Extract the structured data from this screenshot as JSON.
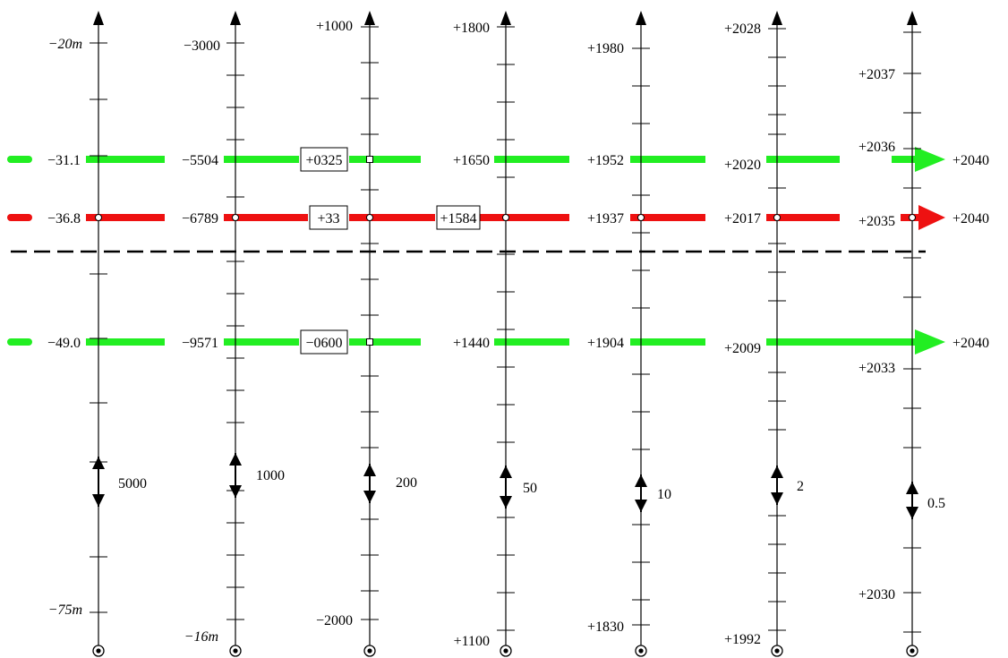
{
  "colors": {
    "green": "#22ee22",
    "red": "#ee1111",
    "axis": "#000000",
    "dash": "#000000"
  },
  "axes": [
    {
      "id": "a1",
      "top_label": "−20m",
      "bottom_label": "−75m",
      "top_label_italic": true,
      "step_label": "5000",
      "green_upper": "−31.1",
      "red": "−36.8",
      "green_lower": "−49.0"
    },
    {
      "id": "a2",
      "top_label": "−3000",
      "bottom_label": "−16m",
      "bottom_label_italic": true,
      "step_label": "1000",
      "green_upper": "−5504",
      "red": "−6789",
      "green_lower": "−9571"
    },
    {
      "id": "a3",
      "top_label": "+1000",
      "bottom_label": "−2000",
      "step_label": "200",
      "green_upper": "+0325",
      "red": "+33",
      "green_lower": "−0600"
    },
    {
      "id": "a4",
      "top_label": "+1800",
      "bottom_label": "+1100",
      "step_label": "50",
      "green_upper": "+1650",
      "red": "+1584",
      "green_lower": "+1440"
    },
    {
      "id": "a5",
      "top_label": "+1980",
      "bottom_label": "+1830",
      "step_label": "10",
      "green_upper": "+1952",
      "red": "+1937",
      "green_lower": "+1904"
    },
    {
      "id": "a6",
      "top_label": "+2028",
      "bottom_label": "+1992",
      "step_label": "2",
      "green_upper": "+2020",
      "red": "+2017",
      "green_lower": "+2009"
    },
    {
      "id": "a7",
      "top_label": "+2037",
      "bottom_label": "+2030",
      "step_label": "0.5",
      "green_upper": "+2036",
      "red": "+2035",
      "green_lower": "+2033"
    }
  ],
  "arrow_targets": {
    "green_upper": "+2040",
    "red": "+2040",
    "green_lower": "+2040"
  }
}
